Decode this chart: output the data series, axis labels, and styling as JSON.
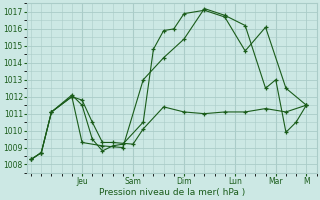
{
  "xlabel": "Pression niveau de la mer( hPa )",
  "bg_color": "#cce8e4",
  "grid_color": "#aaccc8",
  "line_color_dark": "#1a5c1a",
  "line_color_med": "#2d7a2d",
  "ylim": [
    1007.5,
    1017.5
  ],
  "yticks": [
    1008,
    1009,
    1010,
    1011,
    1012,
    1013,
    1014,
    1015,
    1016,
    1017
  ],
  "xlim": [
    -0.2,
    14.0
  ],
  "day_labels": [
    "Jeu",
    "Sam",
    "Dim",
    "Lun",
    "Mar",
    "M"
  ],
  "day_positions": [
    2.5,
    5.0,
    7.5,
    10.0,
    12.0,
    13.5
  ],
  "line1_x": [
    0,
    0.5,
    1.0,
    2.0,
    2.5,
    3.0,
    3.5,
    4.0,
    4.5,
    5.5,
    6.0,
    6.5,
    7.0,
    7.5,
    8.5,
    9.5,
    10.5,
    11.5,
    12.5,
    13.5
  ],
  "line1_y": [
    1008.3,
    1008.7,
    1011.1,
    1012.1,
    1011.5,
    1009.5,
    1008.8,
    1009.1,
    1009.2,
    1010.5,
    1014.8,
    1015.9,
    1016.0,
    1016.9,
    1017.1,
    1016.7,
    1014.7,
    1016.1,
    1012.5,
    1011.5
  ],
  "line2_x": [
    0,
    0.5,
    1.0,
    2.0,
    2.5,
    3.0,
    3.5,
    4.0,
    5.0,
    5.5,
    6.5,
    7.5,
    8.5,
    9.5,
    10.5,
    11.5,
    12.5,
    13.5
  ],
  "line2_y": [
    1008.3,
    1008.7,
    1011.1,
    1012.0,
    1011.8,
    1010.5,
    1009.3,
    1009.3,
    1009.2,
    1010.1,
    1011.4,
    1011.1,
    1011.0,
    1011.1,
    1011.1,
    1011.3,
    1011.1,
    1011.5
  ],
  "line3_x": [
    0,
    0.5,
    1.0,
    2.0,
    2.5,
    3.5,
    4.5,
    5.5,
    6.5,
    7.5,
    8.5,
    9.5,
    10.5,
    11.5,
    12.0,
    12.5,
    13.0,
    13.5
  ],
  "line3_y": [
    1008.3,
    1008.7,
    1011.1,
    1012.0,
    1009.3,
    1009.1,
    1009.0,
    1013.0,
    1014.3,
    1015.4,
    1017.2,
    1016.8,
    1016.2,
    1012.5,
    1013.0,
    1009.9,
    1010.5,
    1011.5
  ]
}
